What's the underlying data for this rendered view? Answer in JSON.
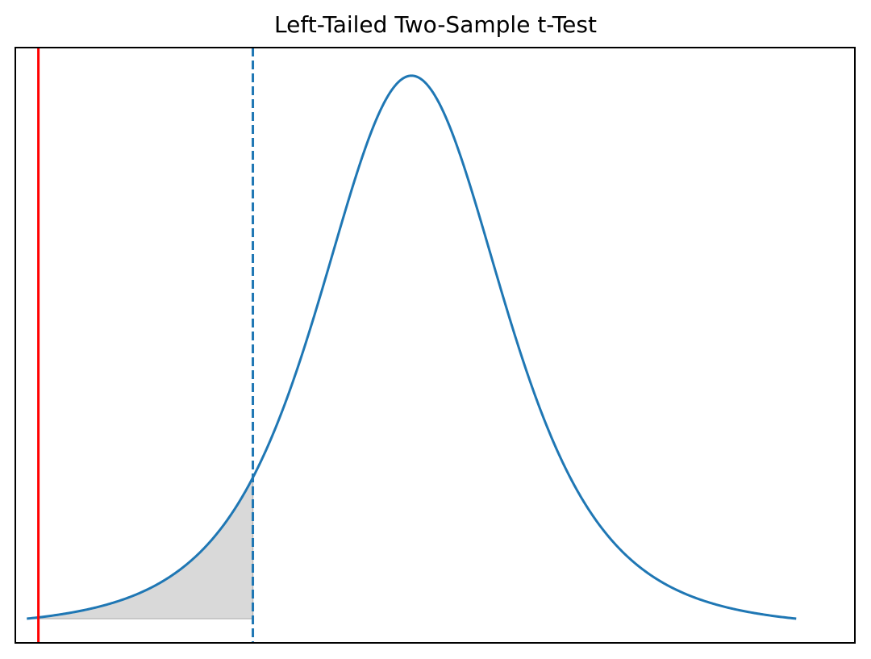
{
  "chart_data": {
    "type": "line",
    "title": "Left-Tailed Two-Sample t-Test",
    "xlabel": "",
    "ylabel": "",
    "ticks_visible": false,
    "grid": false,
    "xlim": [
      -4.12,
      4.61
    ],
    "ylim": [
      -0.0175,
      0.4128
    ],
    "distribution": {
      "kind": "t-distribution pdf",
      "center": 0,
      "x_range": [
        -4,
        4
      ],
      "peak_y": 0.3925
    },
    "series": [
      {
        "points": [
          [
            -4.0,
            0.0
          ],
          [
            -3.5,
            0.0015
          ],
          [
            -3.0,
            0.005
          ],
          [
            -2.5,
            0.017
          ],
          [
            -2.0,
            0.0525
          ],
          [
            -1.65,
            0.1023
          ],
          [
            -1.5,
            0.13
          ],
          [
            -1.0,
            0.24
          ],
          [
            -0.5,
            0.35
          ],
          [
            0.0,
            0.3925
          ],
          [
            0.5,
            0.35
          ],
          [
            1.0,
            0.24
          ],
          [
            1.5,
            0.13
          ],
          [
            2.0,
            0.0525
          ],
          [
            2.5,
            0.017
          ],
          [
            3.0,
            0.005
          ],
          [
            3.5,
            0.0015
          ],
          [
            4.0,
            0.0
          ]
        ]
      }
    ],
    "critical_value": -1.65,
    "test_statistic": -3.88,
    "shaded_region": {
      "from": -4.0,
      "to": -1.65
    },
    "colors": {
      "curve": "#1f77b4",
      "critical_line": "#1f77b4",
      "statistic_line": "#ff0000",
      "shade": "#d9d9d9",
      "shade_edge": "#bdbdbd",
      "frame": "#000000"
    }
  }
}
